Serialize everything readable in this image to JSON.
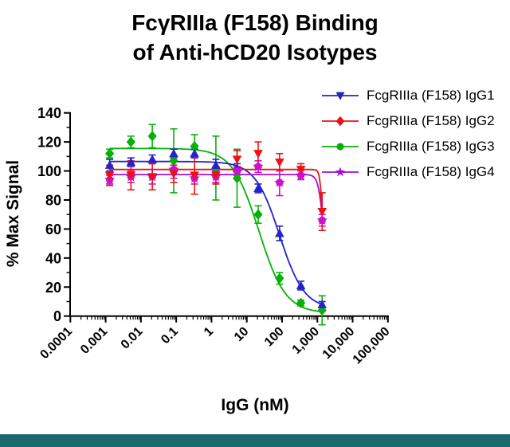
{
  "title": {
    "line1": "FcγRIIIa (F158) Binding",
    "line2": "of Anti-hCD20 Isotypes"
  },
  "legend": {
    "items": [
      {
        "id": "igg1",
        "label": "FcgRIIIa (F158) IgG1",
        "marker": "triangle-down",
        "color": "#2323c8"
      },
      {
        "id": "igg2",
        "label": "FcgRIIIa (F158) IgG2",
        "marker": "diamond",
        "color": "#ee1111"
      },
      {
        "id": "igg3",
        "label": "FcgRIIIa (F158) IgG3",
        "marker": "circle",
        "color": "#07b007"
      },
      {
        "id": "igg4",
        "label": "FcgRIIIa (F158) IgG4",
        "marker": "star",
        "color": "#9b10d0"
      }
    ]
  },
  "chart_data": {
    "type": "scatter",
    "title": "FcγRIIIa (F158) Binding of Anti-hCD20 Isotypes",
    "xlabel": "IgG (nM)",
    "ylabel": "% Max Signal",
    "x_scale": "log",
    "x_range_log": [
      -4,
      5
    ],
    "x_tick_labels": [
      "0.0001",
      "0.001",
      "0.01",
      "0.1",
      "1",
      "10",
      "100",
      "1,000",
      "10,000",
      "100,000"
    ],
    "ylim": [
      0,
      140
    ],
    "y_major_step": 20,
    "y_minor_step": 10,
    "grid": false,
    "legend_position": "top-right",
    "x": [
      0.0013,
      0.0052,
      0.021,
      0.085,
      0.33,
      1.33,
      5.3,
      21,
      85,
      341,
      1365
    ],
    "series": [
      {
        "id": "igg3",
        "name": "FcgRIIIa (F158) IgG3",
        "plot_marker": "diamond",
        "color": "#07b007",
        "line_color": "#07b007",
        "values": [
          112,
          120,
          124,
          107,
          117,
          102,
          95,
          70,
          26,
          9,
          4
        ],
        "errors": [
          3,
          4,
          8,
          22,
          8,
          22,
          20,
          6,
          4,
          2,
          10
        ],
        "fit": {
          "top": 115.5,
          "bottom": 2,
          "ec50": 22,
          "hill": 1.15
        }
      },
      {
        "id": "igg1",
        "name": "FcgRIIIa (F158) IgG1",
        "plot_marker": "triangle-up",
        "color": "#2323c8",
        "line_color": "#2323c8",
        "values": [
          104,
          106,
          108,
          112,
          112,
          104,
          102,
          88,
          57,
          21,
          8
        ],
        "errors": [
          4,
          3,
          3,
          3,
          3,
          4,
          3,
          3,
          5,
          3,
          2
        ],
        "fit": {
          "top": 106.5,
          "bottom": 5,
          "ec50": 85,
          "hill": 1.25
        }
      },
      {
        "id": "igg4",
        "name": "FcgRIIIa (F158) IgG4",
        "plot_marker": "circle-star",
        "color": "#cf10cf",
        "color2": "#9b10d0",
        "line_color": "#a712d0",
        "values": [
          94,
          96,
          96,
          101,
          95,
          96,
          100,
          103,
          92,
          97,
          66
        ],
        "errors": [
          3,
          4,
          5,
          6,
          4,
          4,
          3,
          4,
          9,
          3,
          4
        ],
        "fit": {
          "top": 97.5,
          "bottom": 20,
          "ec50": 1500,
          "hill": 6
        }
      },
      {
        "id": "igg2",
        "name": "FcgRIIIa (F158) IgG2",
        "plot_marker": "triangle-down",
        "color": "#ee1111",
        "line_color": "#ee1111",
        "values": [
          97,
          97,
          96,
          98,
          97,
          97,
          108,
          112,
          106,
          101,
          72
        ],
        "errors": [
          7,
          10,
          9,
          6,
          13,
          6,
          6,
          8,
          6,
          4,
          13
        ],
        "fit": {
          "top": 101,
          "bottom": 25,
          "ec50": 1420,
          "hill": 12
        }
      }
    ]
  },
  "footer": {
    "color": "#1d686e"
  }
}
